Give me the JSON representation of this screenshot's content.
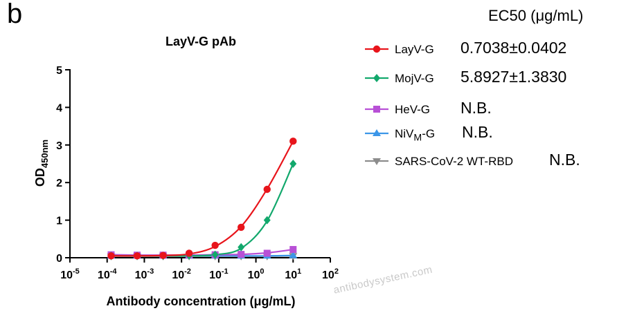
{
  "panel_letter": "b",
  "ec50_header": "EC50 (μg/mL)",
  "watermark": "antibodysystem.com",
  "chart_data": {
    "type": "line",
    "title": "LayV-G pAb",
    "xlabel": "Antibody concentration (μg/mL)",
    "ylabel_main": "OD",
    "ylabel_sub": "450nm",
    "xscale": "log",
    "xlim_exp": [
      -5,
      2
    ],
    "ylim": [
      0,
      5
    ],
    "yticks": [
      "0",
      "1",
      "2",
      "3",
      "4",
      "5"
    ],
    "xtick_exponents": [
      "-5",
      "-4",
      "-3",
      "-2",
      "-1",
      "0",
      "1",
      "2"
    ],
    "xtick_base": "10",
    "x": [
      0.000128,
      0.00064,
      0.0032,
      0.016,
      0.08,
      0.4,
      2,
      10
    ],
    "legend_position": "right",
    "series": [
      {
        "name": "LayV-G",
        "legend_main": "LayV-G",
        "legend_sub": "",
        "legend_tail": "",
        "ec50": "0.7038±0.0402",
        "color": "#e8141b",
        "marker": "circle",
        "values": [
          0.05,
          0.05,
          0.06,
          0.12,
          0.33,
          0.81,
          1.82,
          3.1
        ],
        "curve": [
          0.05,
          0.05,
          0.06,
          0.1,
          0.3,
          0.83,
          1.83,
          3.1
        ]
      },
      {
        "name": "MojV-G",
        "legend_main": "MojV-G",
        "legend_sub": "",
        "legend_tail": "",
        "ec50": "5.8927±1.3830",
        "color": "#12a86c",
        "marker": "diamond",
        "values": [
          0.05,
          0.05,
          0.05,
          0.06,
          0.08,
          0.28,
          1.0,
          2.5
        ],
        "curve": [
          0.05,
          0.05,
          0.05,
          0.05,
          0.08,
          0.25,
          0.98,
          2.5
        ]
      },
      {
        "name": "HeV-G",
        "legend_main": "HeV-G",
        "legend_sub": "",
        "legend_tail": "",
        "ec50": "N.B.",
        "color": "#b850d6",
        "marker": "square",
        "values": [
          0.08,
          0.07,
          0.07,
          0.07,
          0.08,
          0.09,
          0.12,
          0.22
        ],
        "curve": [
          0.08,
          0.07,
          0.07,
          0.07,
          0.08,
          0.09,
          0.13,
          0.22
        ]
      },
      {
        "name": "NiVM-G",
        "legend_main": "NiV",
        "legend_sub": "M",
        "legend_tail": "-G",
        "ec50": "N.B.",
        "color": "#3b96e8",
        "marker": "triangle-up",
        "values": [
          0.05,
          0.05,
          0.05,
          0.05,
          0.05,
          0.05,
          0.05,
          0.06
        ],
        "curve": [
          0.05,
          0.05,
          0.05,
          0.05,
          0.05,
          0.05,
          0.05,
          0.06
        ]
      },
      {
        "name": "SARS-CoV-2 WT-RBD",
        "legend_main": "SARS-CoV-2 WT-RBD",
        "legend_sub": "",
        "legend_tail": "",
        "ec50": "N.B.",
        "color": "#8c8c8c",
        "marker": "triangle-down",
        "values": [
          0.04,
          0.04,
          0.04,
          0.04,
          0.04,
          0.04,
          0.04,
          0.05
        ],
        "curve": [
          0.04,
          0.04,
          0.04,
          0.04,
          0.04,
          0.04,
          0.04,
          0.05
        ]
      }
    ]
  }
}
